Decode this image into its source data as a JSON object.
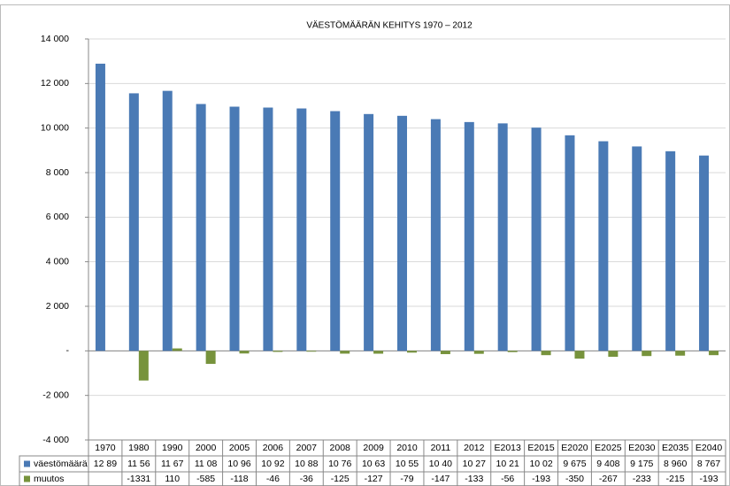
{
  "chart_data": {
    "type": "bar",
    "title": "VÄESTÖMÄÄRÄN KEHITYS 1970 – 2012",
    "categories": [
      "1970",
      "1980",
      "1990",
      "2000",
      "2005",
      "2006",
      "2007",
      "2008",
      "2009",
      "2010",
      "2011",
      "2012",
      "E2013",
      "E2015",
      "E2020",
      "E2025",
      "E2030",
      "E2035",
      "E2040"
    ],
    "series": [
      {
        "name": "väestömäärä",
        "color": "#4a7ab5",
        "values": [
          12890,
          11560,
          11670,
          11080,
          10960,
          10920,
          10880,
          10760,
          10630,
          10550,
          10400,
          10270,
          10210,
          10020,
          9675,
          9408,
          9175,
          8960,
          8767
        ],
        "value_labels": [
          "12 89",
          "11 56",
          "11 67",
          "11 08",
          "10 96",
          "10 92",
          "10 88",
          "10 76",
          "10 63",
          "10 55",
          "10 40",
          "10 27",
          "10 21",
          "10 02",
          "9 675",
          "9 408",
          "9 175",
          "8 960",
          "8 767"
        ]
      },
      {
        "name": "muutos",
        "color": "#77933c",
        "values": [
          null,
          -1331,
          110,
          -585,
          -118,
          -46,
          -36,
          -125,
          -127,
          -79,
          -147,
          -133,
          -56,
          -193,
          -350,
          -267,
          -233,
          -215,
          -193
        ]
      }
    ],
    "ylim": [
      -4000,
      14000
    ],
    "yticks": [
      {
        "value": -4000,
        "label": "-4 000"
      },
      {
        "value": -2000,
        "label": "-2 000"
      },
      {
        "value": 0,
        "label": "-"
      },
      {
        "value": 2000,
        "label": "2 000"
      },
      {
        "value": 4000,
        "label": "4 000"
      },
      {
        "value": 6000,
        "label": "6 000"
      },
      {
        "value": 8000,
        "label": "8 000"
      },
      {
        "value": 10000,
        "label": "10 000"
      },
      {
        "value": 12000,
        "label": "12 000"
      },
      {
        "value": 14000,
        "label": "14 000"
      }
    ],
    "grid": true
  }
}
